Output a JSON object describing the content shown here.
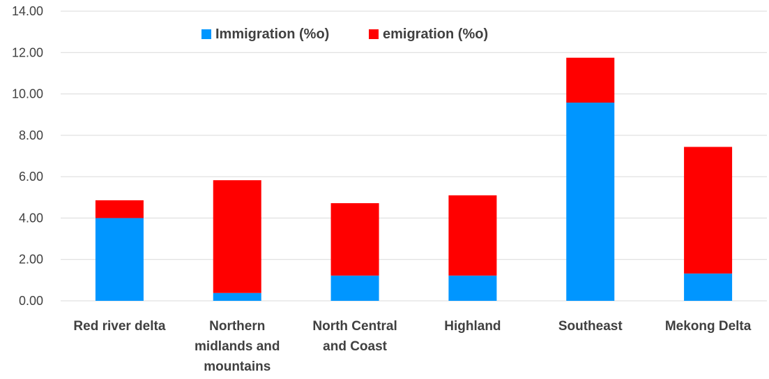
{
  "chart_data": {
    "type": "bar",
    "stacked": true,
    "categories": [
      [
        "Red river delta"
      ],
      [
        "Northern",
        "midlands and",
        "mountains"
      ],
      [
        "North Central",
        "and Coast"
      ],
      [
        "Highland"
      ],
      [
        "Southeast"
      ],
      [
        "Mekong Delta"
      ]
    ],
    "series": [
      {
        "name": "Immigration (%o)",
        "color": "#0096FF",
        "values": [
          4.0,
          0.38,
          1.22,
          1.22,
          9.58,
          1.32
        ]
      },
      {
        "name": "emigration (%o)",
        "color": "#FF0000",
        "values": [
          0.86,
          5.45,
          3.5,
          3.88,
          2.17,
          6.12
        ]
      }
    ],
    "yticks": [
      "0.00",
      "2.00",
      "4.00",
      "6.00",
      "8.00",
      "10.00",
      "12.00",
      "14.00"
    ],
    "ylim": [
      0,
      14
    ],
    "grid": true,
    "legend_position": "top"
  }
}
